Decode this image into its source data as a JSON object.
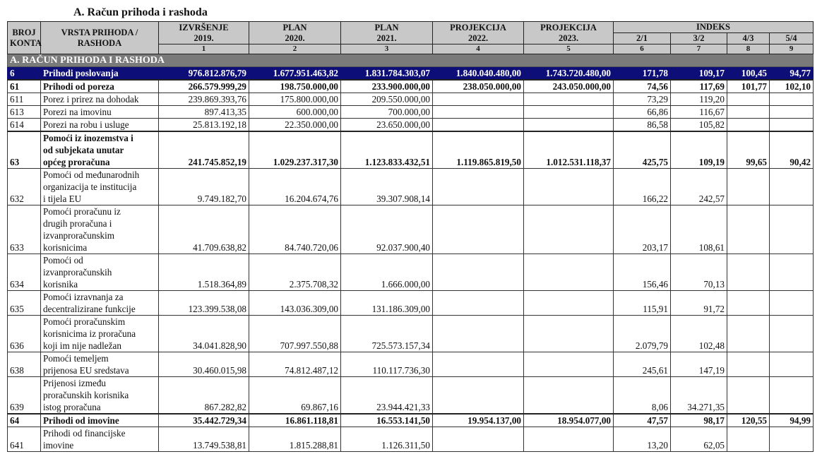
{
  "title": "A.  Račun prihoda i rashoda",
  "header": {
    "broj_konta": "BROJ\nKONTA",
    "vrsta": "VRSTA PRIHODA /\nRASHODA",
    "columns": [
      {
        "label": "IZVRŠENJE",
        "year": "2019.",
        "num": "1"
      },
      {
        "label": "PLAN",
        "year": "2020.",
        "num": "2"
      },
      {
        "label": "PLAN",
        "year": "2021.",
        "num": "3"
      },
      {
        "label": "PROJEKCIJA",
        "year": "2022.",
        "num": "4"
      },
      {
        "label": "PROJEKCIJA",
        "year": "2023.",
        "num": "5"
      }
    ],
    "indeks": "INDEKS",
    "indeks_cols": [
      {
        "label": "2/1",
        "num": "6"
      },
      {
        "label": "3/2",
        "num": "7"
      },
      {
        "label": "4/3",
        "num": "8"
      },
      {
        "label": "5/4",
        "num": "9"
      }
    ]
  },
  "section": "A. RAČUN PRIHODA I RASHODA",
  "rows": [
    {
      "num": "6",
      "label": "Prihodi poslovanja",
      "style": "hl",
      "values": [
        "976.812.876,79",
        "1.677.951.463,82",
        "1.831.784.303,07",
        "1.840.040.480,00",
        "1.743.720.480,00",
        "171,78",
        "109,17",
        "100,45",
        "94,77"
      ]
    },
    {
      "num": "61",
      "label": "Prihodi od poreza",
      "style": "bold",
      "values": [
        "266.579.999,29",
        "198.750.000,00",
        "233.900.000,00",
        "238.050.000,00",
        "243.050.000,00",
        "74,56",
        "117,69",
        "101,77",
        "102,10"
      ]
    },
    {
      "num": "611",
      "label": "Porez i prirez na dohodak",
      "style": "",
      "values": [
        "239.869.393,76",
        "175.800.000,00",
        "209.550.000,00",
        "",
        "",
        "73,29",
        "119,20",
        "",
        ""
      ]
    },
    {
      "num": "613",
      "label": "Porezi na imovinu",
      "style": "",
      "values": [
        "897.413,35",
        "600.000,00",
        "700.000,00",
        "",
        "",
        "66,86",
        "116,67",
        "",
        ""
      ]
    },
    {
      "num": "614",
      "label": "Porezi na robu i usluge",
      "style": "",
      "values": [
        "25.813.192,18",
        "22.350.000,00",
        "23.650.000,00",
        "",
        "",
        "86,58",
        "105,82",
        "",
        ""
      ]
    },
    {
      "num": "63",
      "label": "Pomoći iz inozemstva i\nod subjekata unutar\nopćeg proračuna",
      "style": "bold",
      "values": [
        "241.745.852,19",
        "1.029.237.317,30",
        "1.123.833.432,51",
        "1.119.865.819,50",
        "1.012.531.118,37",
        "425,75",
        "109,19",
        "99,65",
        "90,42"
      ]
    },
    {
      "num": "632",
      "label": "Pomoći od međunarodnih\norganizacija te institucija\ni tijela EU",
      "style": "",
      "values": [
        "9.749.182,70",
        "16.204.674,76",
        "39.307.908,14",
        "",
        "",
        "166,22",
        "242,57",
        "",
        ""
      ]
    },
    {
      "num": "633",
      "label": "Pomoći proračunu iz\ndrugih proračuna i\nizvanproračunskim\nkorisnicima",
      "style": "",
      "values": [
        "41.709.638,82",
        "84.740.720,06",
        "92.037.900,40",
        "",
        "",
        "203,17",
        "108,61",
        "",
        ""
      ]
    },
    {
      "num": "634",
      "label": "Pomoći od\nizvanproračunskih\nkorisnika",
      "style": "",
      "values": [
        "1.518.364,89",
        "2.375.708,32",
        "1.666.000,00",
        "",
        "",
        "156,46",
        "70,13",
        "",
        ""
      ]
    },
    {
      "num": "635",
      "label": "Pomoći izravnanja za\ndecentralizirane funkcije",
      "style": "",
      "values": [
        "123.399.538,08",
        "143.036.309,00",
        "131.186.309,00",
        "",
        "",
        "115,91",
        "91,72",
        "",
        ""
      ]
    },
    {
      "num": "636",
      "label": "Pomoći proračunskim\nkorisnicima iz proračuna\nkoji im nije nadležan",
      "style": "",
      "values": [
        "34.041.828,90",
        "707.997.550,88",
        "725.573.157,34",
        "",
        "",
        "2.079,79",
        "102,48",
        "",
        ""
      ]
    },
    {
      "num": "638",
      "label": "Pomoći temeljem\nprijenosa EU sredstava",
      "style": "",
      "values": [
        "30.460.015,98",
        "74.812.487,12",
        "110.117.736,30",
        "",
        "",
        "245,61",
        "147,19",
        "",
        ""
      ]
    },
    {
      "num": "639",
      "label": "Prijenosi između\nproračunskih korisnika\nistog proračuna",
      "style": "",
      "values": [
        "867.282,82",
        "69.867,16",
        "23.944.421,33",
        "",
        "",
        "8,06",
        "34.271,35",
        "",
        ""
      ]
    },
    {
      "num": "64",
      "label": "Prihodi od imovine",
      "style": "bold",
      "values": [
        "35.442.729,34",
        "16.861.118,81",
        "16.553.141,50",
        "19.954.137,00",
        "18.954.077,00",
        "47,57",
        "98,17",
        "120,55",
        "94,99"
      ]
    },
    {
      "num": "641",
      "label": "Prihodi od financijske\nimovine",
      "style": "",
      "values": [
        "13.749.538,81",
        "1.815.288,81",
        "1.126.311,50",
        "",
        "",
        "13,20",
        "62,05",
        "",
        ""
      ]
    }
  ]
}
